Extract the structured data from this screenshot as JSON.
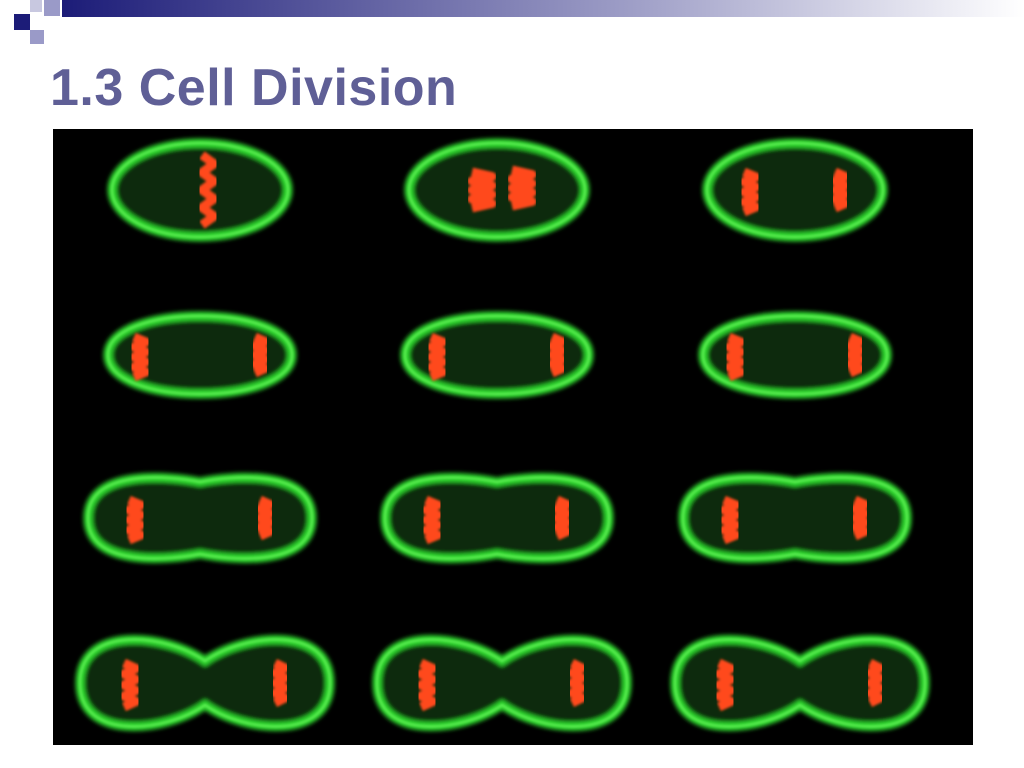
{
  "header": {
    "title": "1.3 Cell Division"
  }
}
